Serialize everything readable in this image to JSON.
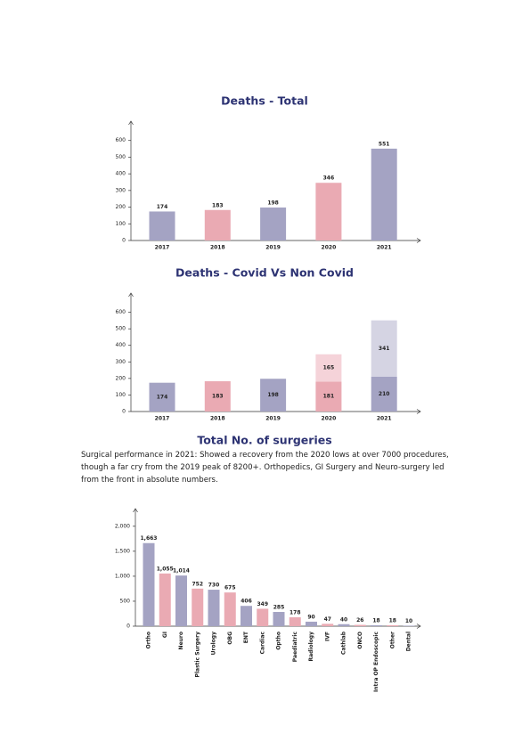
{
  "chart_data": [
    {
      "type": "bar",
      "title": "Deaths - Total",
      "categories": [
        "2017",
        "2018",
        "2019",
        "2020",
        "2021"
      ],
      "values": [
        174,
        183,
        198,
        346,
        551
      ],
      "colors": [
        "#a4a3c3",
        "#eaaab3",
        "#a4a3c3",
        "#eaaab3",
        "#a4a3c3"
      ],
      "label_colors": [
        "#2d3373",
        "#d6425c",
        "#2d3373",
        "#d6425c",
        "#2d3373"
      ],
      "ylim": [
        0,
        700
      ],
      "yticks": [
        0,
        100,
        200,
        300,
        400,
        500,
        600
      ]
    },
    {
      "type": "stacked_bar",
      "title": "Deaths - Covid Vs Non Covid",
      "categories": [
        "2017",
        "2018",
        "2019",
        "2020",
        "2021"
      ],
      "series": [
        {
          "values": [
            174,
            183,
            198,
            181,
            210
          ],
          "colors": [
            "#a4a3c3",
            "#eaaab3",
            "#a4a3c3",
            "#eaaab3",
            "#a4a3c3"
          ],
          "label_color": "#ffffff"
        },
        {
          "values": [
            null,
            null,
            null,
            165,
            341
          ],
          "colors": [
            null,
            null,
            null,
            "#f5d3d9",
            "#d5d4e3"
          ],
          "label_colors": [
            null,
            null,
            null,
            "#d6425c",
            "#2d3373"
          ]
        }
      ],
      "label_colors": [
        "#2d3373",
        "#d6425c",
        "#2d3373",
        "#d6425c",
        "#2d3373"
      ],
      "ylim": [
        0,
        700
      ],
      "yticks": [
        0,
        100,
        200,
        300,
        400,
        500,
        600
      ]
    },
    {
      "type": "bar",
      "title": "Total No. of surgeries",
      "categories": [
        "Ortho",
        "GI",
        "Neuro",
        "Plastic Surgery",
        "Urology",
        "OBG",
        "ENT",
        "Cardiac",
        "Optho",
        "Paediatric",
        "Radiology",
        "IVF",
        "Cathlab",
        "ONCO",
        "Intra OP Endoscopic",
        "Other",
        "Dental"
      ],
      "values": [
        1663,
        1055,
        1014,
        752,
        730,
        675,
        406,
        349,
        285,
        178,
        90,
        47,
        40,
        26,
        18,
        18,
        10
      ],
      "value_labels": [
        "1,663",
        "1,055",
        "1,014",
        "752",
        "730",
        "675",
        "406",
        "349",
        "285",
        "178",
        "90",
        "47",
        "40",
        "26",
        "18",
        "18",
        "10"
      ],
      "colors": [
        "#a4a3c3",
        "#eaaab3",
        "#a4a3c3",
        "#eaaab3",
        "#a4a3c3",
        "#eaaab3",
        "#a4a3c3",
        "#eaaab3",
        "#a4a3c3",
        "#eaaab3",
        "#a4a3c3",
        "#eaaab3",
        "#a4a3c3",
        "#eaaab3",
        "#a4a3c3",
        "#eaaab3",
        "#a4a3c3"
      ],
      "label_colors": [
        "#2d3373",
        "#d6425c",
        "#2d3373",
        "#d6425c",
        "#2d3373",
        "#d6425c",
        "#2d3373",
        "#d6425c",
        "#2d3373",
        "#d6425c",
        "#2d3373",
        "#d6425c",
        "#2d3373",
        "#d6425c",
        "#2d3373",
        "#d6425c",
        "#2d3373"
      ],
      "ylim": [
        0,
        2300
      ],
      "yticks": [
        0,
        500,
        {
          "value": 1000,
          "label": "1,000"
        },
        {
          "value": 1500,
          "label": "1,500"
        },
        {
          "value": 2000,
          "label": "2,000"
        }
      ]
    }
  ],
  "paragraph": "Surgical performance in 2021: Showed a recovery from the 2020 lows at over 7000 procedures, though a far cry from the 2019 peak of 8200+. Orthopedics, GI Surgery and Neuro-surgery led from the front in absolute numbers."
}
